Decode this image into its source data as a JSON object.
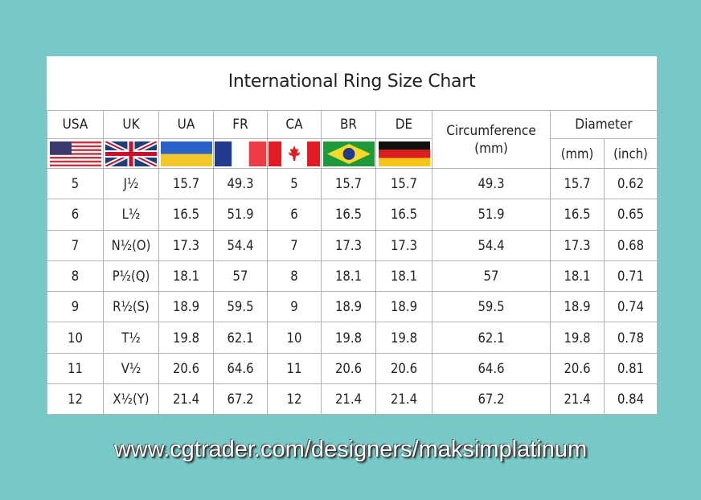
{
  "title": "International Ring Size Chart",
  "headers": {
    "countries": [
      "USA",
      "UK",
      "UA",
      "FR",
      "CA",
      "BR",
      "DE"
    ],
    "circumference": "Circumference\n(mm)",
    "diameter": "Diameter",
    "diameter_mm": "(mm)",
    "diameter_inch": "(inch)"
  },
  "flags": [
    "us-flag-icon",
    "uk-flag-icon",
    "ukraine-flag-icon",
    "france-flag-icon",
    "canada-flag-icon",
    "brazil-flag-icon",
    "germany-flag-icon"
  ],
  "rows": [
    [
      "5",
      "J½",
      "15.7",
      "49.3",
      "5",
      "15.7",
      "15.7",
      "49.3",
      "15.7",
      "0.62"
    ],
    [
      "6",
      "L½",
      "16.5",
      "51.9",
      "6",
      "16.5",
      "16.5",
      "51.9",
      "16.5",
      "0.65"
    ],
    [
      "7",
      "N½(O)",
      "17.3",
      "54.4",
      "7",
      "17.3",
      "17.3",
      "54.4",
      "17.3",
      "0.68"
    ],
    [
      "8",
      "P½(Q)",
      "18.1",
      "57",
      "8",
      "18.1",
      "18.1",
      "57",
      "18.1",
      "0.71"
    ],
    [
      "9",
      "R½(S)",
      "18.9",
      "59.5",
      "9",
      "18.9",
      "18.9",
      "59.5",
      "18.9",
      "0.74"
    ],
    [
      "10",
      "T½",
      "19.8",
      "62.1",
      "10",
      "19.8",
      "19.8",
      "62.1",
      "19.8",
      "0.78"
    ],
    [
      "11",
      "V½",
      "20.6",
      "64.6",
      "11",
      "20.6",
      "20.6",
      "64.6",
      "20.6",
      "0.81"
    ],
    [
      "12",
      "X½(Y)",
      "21.4",
      "67.2",
      "12",
      "21.4",
      "21.4",
      "67.2",
      "21.4",
      "0.84"
    ]
  ],
  "footer": "www.cgtrader.com/designers/maksimplatinum",
  "colors": {
    "background": "#76c9c6",
    "panel": "#ffffff",
    "grid": "#b3b3b3"
  }
}
